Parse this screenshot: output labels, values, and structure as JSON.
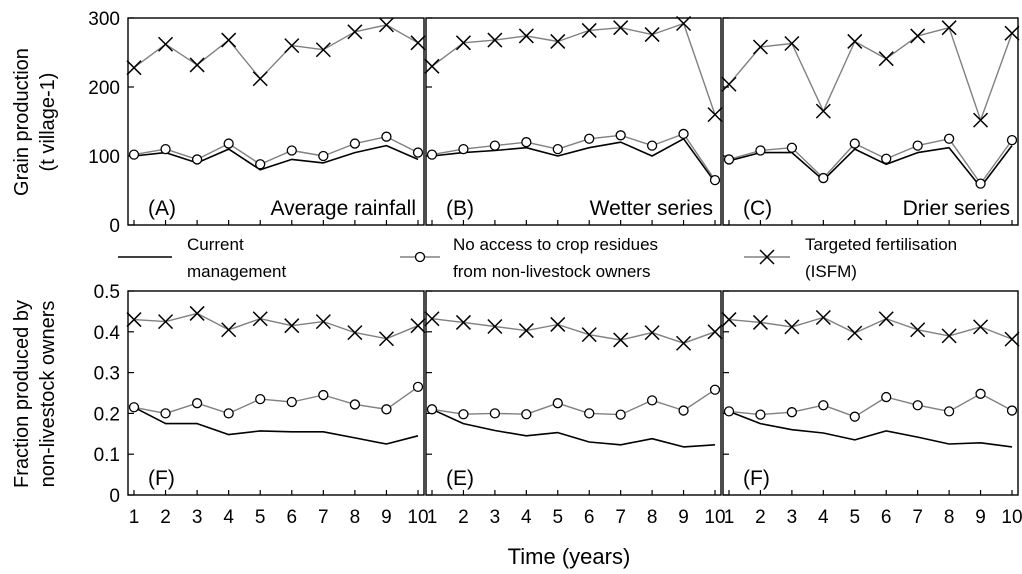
{
  "figure": {
    "x_axis_title": "Time (years)",
    "top_ylabel_line1": "Grain production",
    "top_ylabel_line2": "(t village-1)",
    "bottom_ylabel_line1": "Fraction produced by",
    "bottom_ylabel_line2": "non-livestock owners"
  },
  "legend": [
    {
      "marker": "none",
      "line1": "Current",
      "line2": "management"
    },
    {
      "marker": "circle",
      "line1": "No access to crop residues",
      "line2": "from non-livestock owners"
    },
    {
      "marker": "cross",
      "line1": "Targeted fertilisation",
      "line2": "(ISFM)"
    }
  ],
  "colors": {
    "current": "#000000",
    "no_access": "#808080",
    "targeted": "#808080",
    "frame": "#000000"
  },
  "chart_data": [
    {
      "type": "line",
      "panel_label": "(A)",
      "title": "Average rainfall",
      "x": [
        1,
        2,
        3,
        4,
        5,
        6,
        7,
        8,
        9,
        10
      ],
      "ylim": [
        0,
        300
      ],
      "yticks": [
        0,
        100,
        200,
        300
      ],
      "series": [
        {
          "name": "Current management",
          "values": [
            100,
            105,
            90,
            110,
            80,
            95,
            90,
            105,
            115,
            95
          ]
        },
        {
          "name": "No access to crop residues from non-livestock owners",
          "values": [
            102,
            110,
            95,
            118,
            88,
            108,
            100,
            118,
            128,
            105
          ]
        },
        {
          "name": "Targeted fertilisation (ISFM)",
          "values": [
            228,
            262,
            232,
            268,
            212,
            260,
            254,
            280,
            290,
            264
          ]
        }
      ]
    },
    {
      "type": "line",
      "panel_label": "(B)",
      "title": "Wetter series",
      "x": [
        1,
        2,
        3,
        4,
        5,
        6,
        7,
        8,
        9,
        10
      ],
      "ylim": [
        0,
        300
      ],
      "yticks": [
        0,
        100,
        200,
        300
      ],
      "series": [
        {
          "name": "Current management",
          "values": [
            100,
            105,
            108,
            112,
            100,
            112,
            120,
            100,
            125,
            62
          ]
        },
        {
          "name": "No access to crop residues from non-livestock owners",
          "values": [
            102,
            110,
            115,
            120,
            110,
            125,
            130,
            115,
            132,
            65
          ]
        },
        {
          "name": "Targeted fertilisation (ISFM)",
          "values": [
            230,
            264,
            268,
            274,
            266,
            282,
            286,
            276,
            292,
            160
          ]
        }
      ]
    },
    {
      "type": "line",
      "panel_label": "(C)",
      "title": "Drier series",
      "x": [
        1,
        2,
        3,
        4,
        5,
        6,
        7,
        8,
        9,
        10
      ],
      "ylim": [
        0,
        300
      ],
      "yticks": [
        0,
        100,
        200,
        300
      ],
      "series": [
        {
          "name": "Current management",
          "values": [
            93,
            105,
            105,
            65,
            110,
            88,
            105,
            112,
            55,
            115
          ]
        },
        {
          "name": "No access to crop residues from non-livestock owners",
          "values": [
            95,
            108,
            112,
            68,
            118,
            96,
            115,
            125,
            60,
            123
          ]
        },
        {
          "name": "Targeted fertilisation (ISFM)",
          "values": [
            204,
            258,
            263,
            165,
            266,
            241,
            274,
            286,
            152,
            278
          ]
        }
      ]
    },
    {
      "type": "line",
      "panel_label": "(F)",
      "x": [
        1,
        2,
        3,
        4,
        5,
        6,
        7,
        8,
        9,
        10
      ],
      "ylim": [
        0,
        0.5
      ],
      "yticks": [
        0,
        0.1,
        0.2,
        0.3,
        0.4,
        0.5
      ],
      "series": [
        {
          "name": "Current management",
          "values": [
            0.215,
            0.175,
            0.175,
            0.148,
            0.157,
            0.155,
            0.155,
            0.14,
            0.125,
            0.145
          ]
        },
        {
          "name": "No access to crop residues from non-livestock owners",
          "values": [
            0.215,
            0.2,
            0.225,
            0.2,
            0.235,
            0.228,
            0.245,
            0.222,
            0.21,
            0.265
          ]
        },
        {
          "name": "Targeted fertilisation (ISFM)",
          "values": [
            0.43,
            0.425,
            0.445,
            0.405,
            0.432,
            0.415,
            0.425,
            0.398,
            0.383,
            0.415
          ]
        }
      ]
    },
    {
      "type": "line",
      "panel_label": "(E)",
      "x": [
        1,
        2,
        3,
        4,
        5,
        6,
        7,
        8,
        9,
        10
      ],
      "ylim": [
        0,
        0.5
      ],
      "yticks": [
        0,
        0.1,
        0.2,
        0.3,
        0.4,
        0.5
      ],
      "series": [
        {
          "name": "Current management",
          "values": [
            0.21,
            0.175,
            0.158,
            0.145,
            0.153,
            0.13,
            0.123,
            0.138,
            0.118,
            0.123
          ]
        },
        {
          "name": "No access to crop residues from non-livestock owners",
          "values": [
            0.21,
            0.198,
            0.2,
            0.198,
            0.225,
            0.2,
            0.197,
            0.232,
            0.207,
            0.258
          ]
        },
        {
          "name": "Targeted fertilisation (ISFM)",
          "values": [
            0.432,
            0.423,
            0.413,
            0.403,
            0.418,
            0.393,
            0.38,
            0.398,
            0.372,
            0.4
          ]
        }
      ]
    },
    {
      "type": "line",
      "panel_label": "(F)",
      "x": [
        1,
        2,
        3,
        4,
        5,
        6,
        7,
        8,
        9,
        10
      ],
      "ylim": [
        0,
        0.5
      ],
      "yticks": [
        0,
        0.1,
        0.2,
        0.3,
        0.4,
        0.5
      ],
      "series": [
        {
          "name": "Current management",
          "values": [
            0.205,
            0.175,
            0.16,
            0.152,
            0.135,
            0.157,
            0.142,
            0.125,
            0.128,
            0.118
          ]
        },
        {
          "name": "No access to crop residues from non-livestock owners",
          "values": [
            0.205,
            0.197,
            0.203,
            0.22,
            0.192,
            0.24,
            0.22,
            0.205,
            0.248,
            0.207
          ]
        },
        {
          "name": "Targeted fertilisation (ISFM)",
          "values": [
            0.43,
            0.423,
            0.412,
            0.435,
            0.397,
            0.432,
            0.405,
            0.39,
            0.412,
            0.382
          ]
        }
      ]
    }
  ]
}
